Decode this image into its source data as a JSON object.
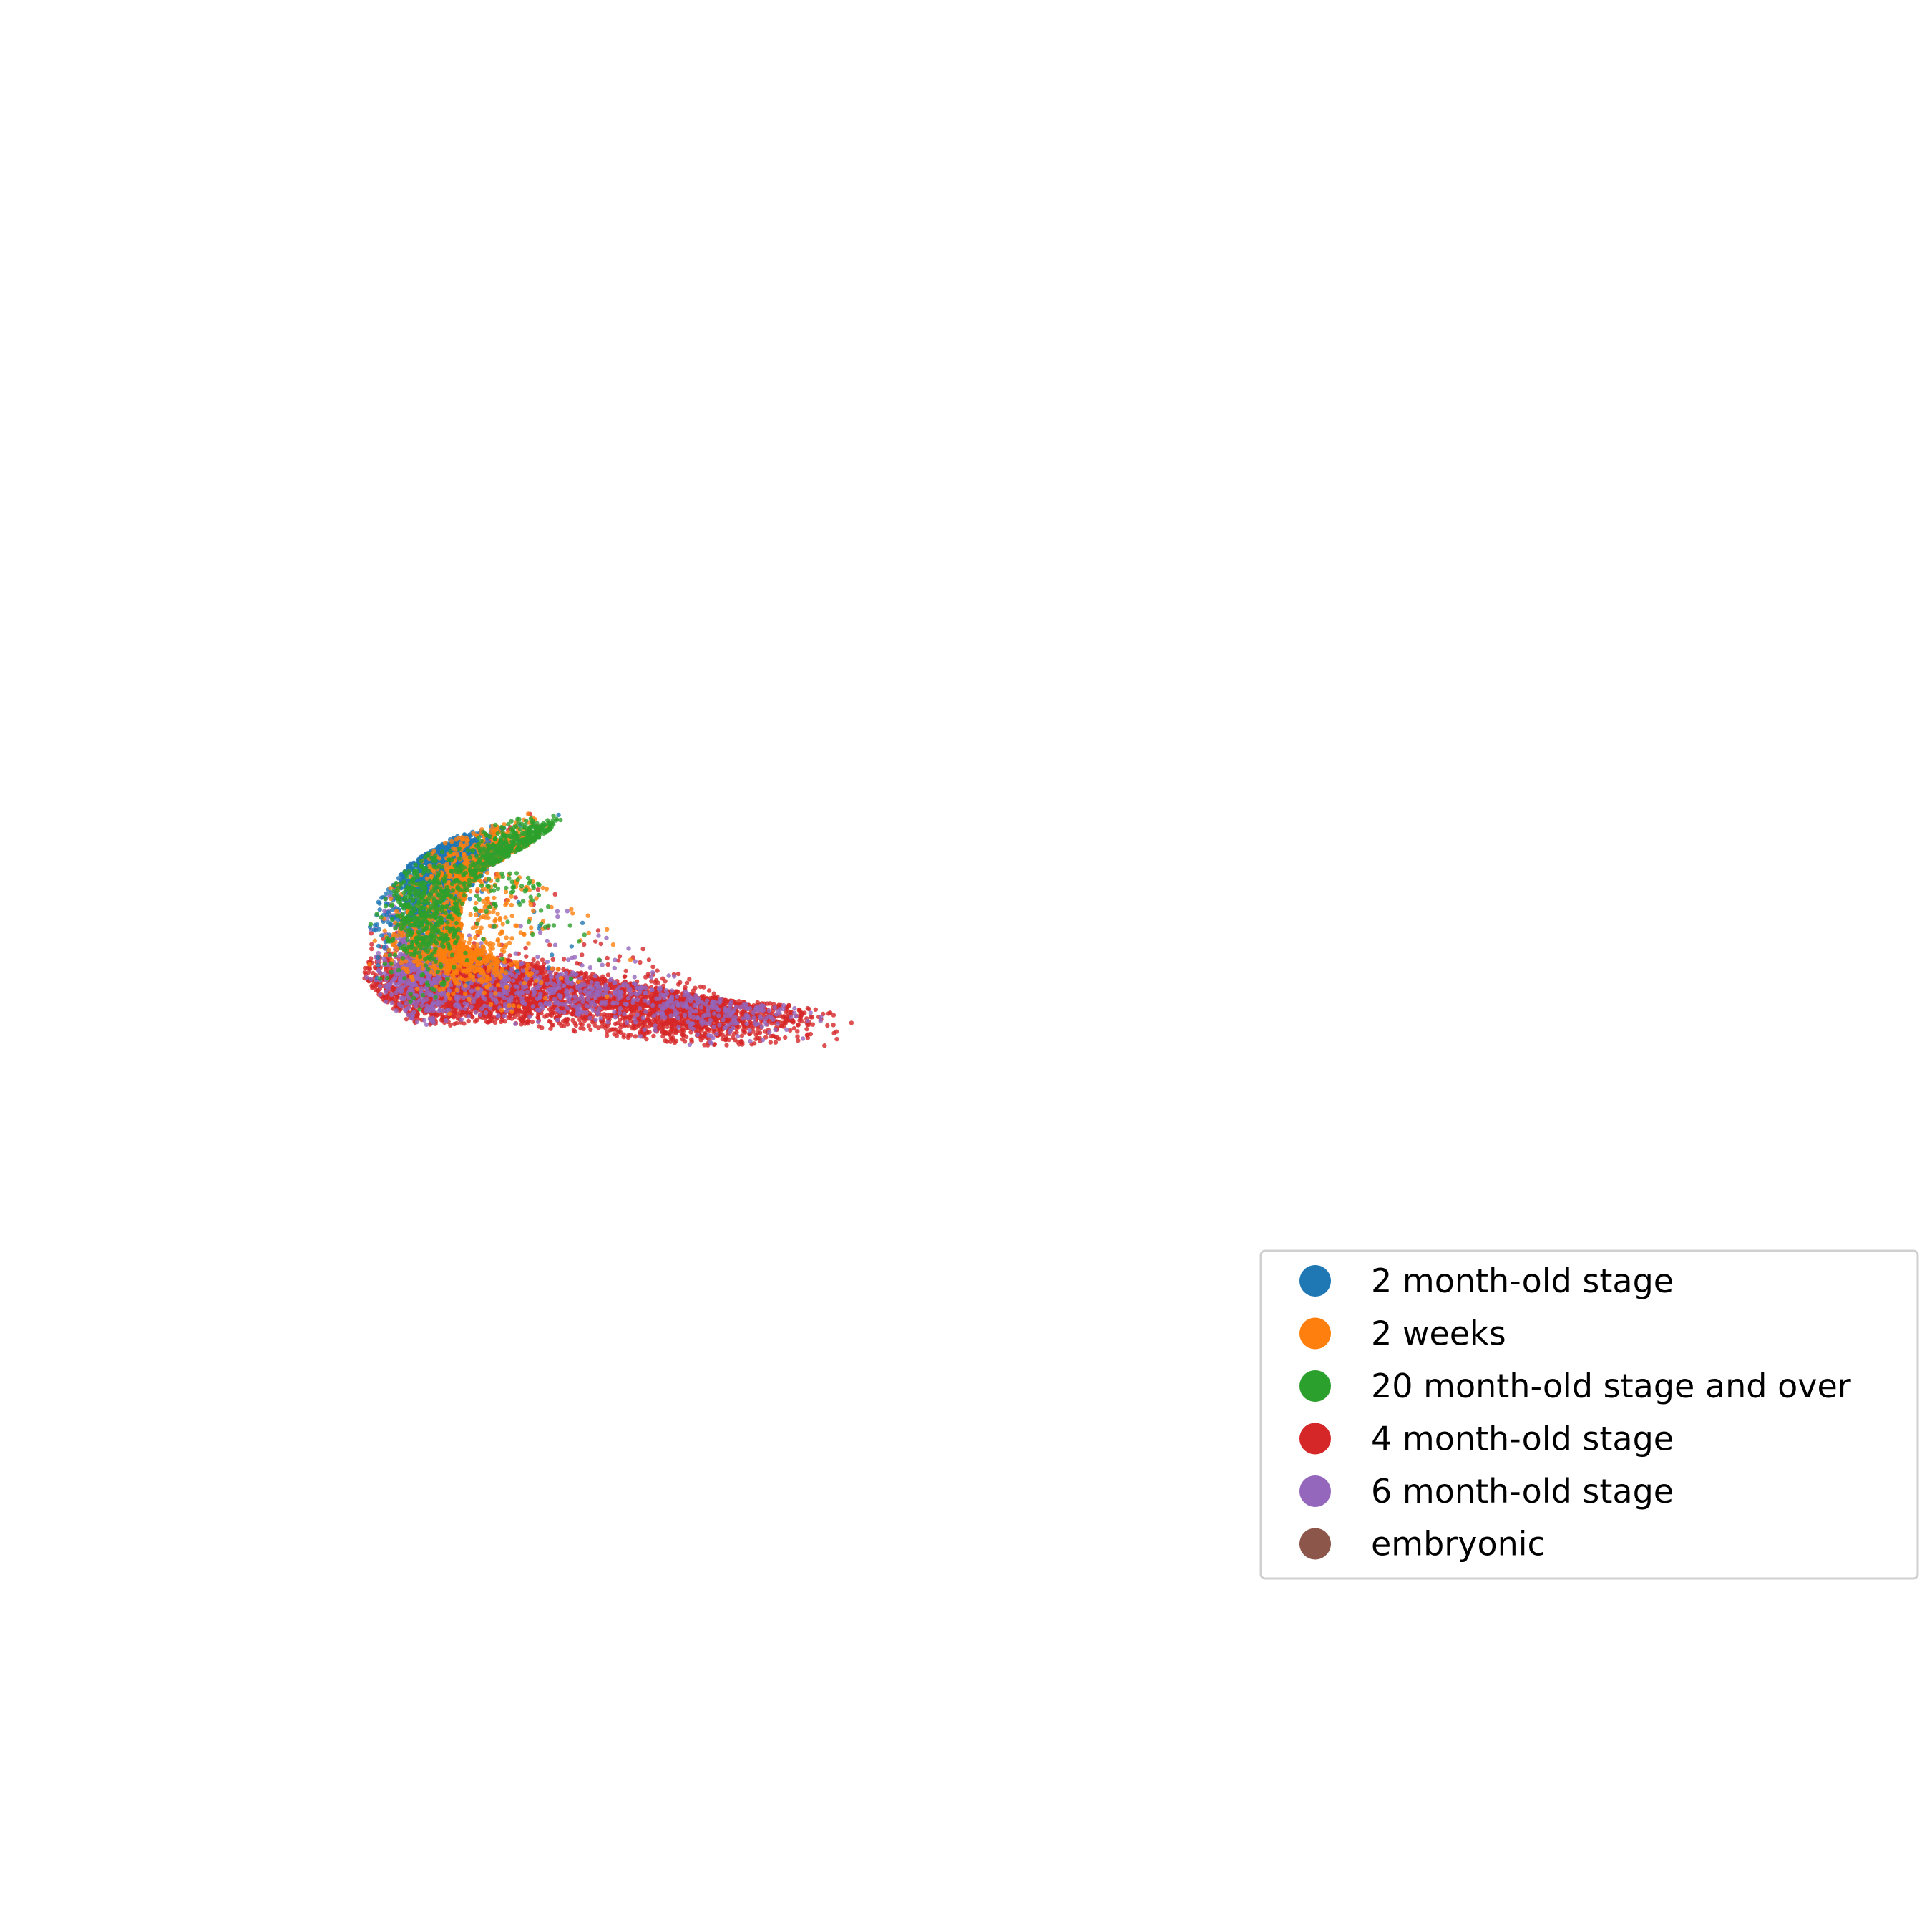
{
  "chart_data": {
    "type": "scatter",
    "title": "",
    "xlabel": "",
    "ylabel": "",
    "axes_visible": false,
    "grid": false,
    "xlim": [
      0,
      100
    ],
    "ylim": [
      0,
      100
    ],
    "legend": {
      "placement": "bottom-right",
      "entries": [
        {
          "label": "2 month-old stage",
          "color": "#1f77b4"
        },
        {
          "label": "2 weeks",
          "color": "#ff7f0e"
        },
        {
          "label": "20 month-old stage and over",
          "color": "#2ca02c"
        },
        {
          "label": "4 month-old stage",
          "color": "#d62728"
        },
        {
          "label": "6 month-old stage",
          "color": "#9467bd"
        },
        {
          "label": "embryonic",
          "color": "#8c564b"
        }
      ]
    },
    "series": [
      {
        "name": "2 month-old stage",
        "color": "#1f77b4",
        "count": 1500,
        "regions": [
          [
            20.5,
            60,
            2.5,
            4.5,
            0.55
          ],
          [
            24,
            61.2,
            3.5,
            1.3,
            0.25
          ],
          [
            32,
            56.5,
            12,
            6,
            0.1
          ],
          [
            19,
            52,
            3,
            4,
            0.1
          ]
        ]
      },
      {
        "name": "2 weeks",
        "color": "#ff7f0e",
        "count": 1400,
        "regions": [
          [
            25.5,
            53,
            3,
            6,
            0.45
          ],
          [
            30,
            59,
            3,
            2.5,
            0.2
          ],
          [
            23,
            46,
            3,
            2.5,
            0.2
          ],
          [
            33,
            51,
            12,
            5,
            0.15
          ]
        ]
      },
      {
        "name": "20 month-old stage and over",
        "color": "#2ca02c",
        "count": 900,
        "regions": [
          [
            34,
            63.5,
            2,
            1.2,
            0.3
          ],
          [
            29,
            60,
            2,
            3,
            0.2
          ],
          [
            19,
            51,
            2,
            5,
            0.2
          ],
          [
            26,
            55,
            3,
            3,
            0.15
          ],
          [
            33,
            54,
            8,
            4,
            0.15
          ]
        ]
      },
      {
        "name": "4 month-old stage",
        "color": "#d62728",
        "count": 4500,
        "regions": [
          [
            32,
            39,
            15,
            3,
            0.45
          ],
          [
            23,
            41,
            5,
            3,
            0.2
          ],
          [
            50,
            36,
            6,
            2.5,
            0.2
          ],
          [
            37,
            58,
            10,
            4,
            0.08
          ],
          [
            42,
            45,
            12,
            4,
            0.07
          ]
        ]
      },
      {
        "name": "6 month-old stage",
        "color": "#9467bd",
        "count": 1400,
        "regions": [
          [
            18.5,
            46,
            2,
            6,
            0.3
          ],
          [
            33,
            40,
            12,
            3,
            0.4
          ],
          [
            52,
            37,
            5,
            2.5,
            0.15
          ],
          [
            38,
            48,
            10,
            5,
            0.15
          ]
        ]
      },
      {
        "name": "embryonic",
        "color": "#8c564b",
        "count": 0,
        "regions": []
      }
    ]
  }
}
